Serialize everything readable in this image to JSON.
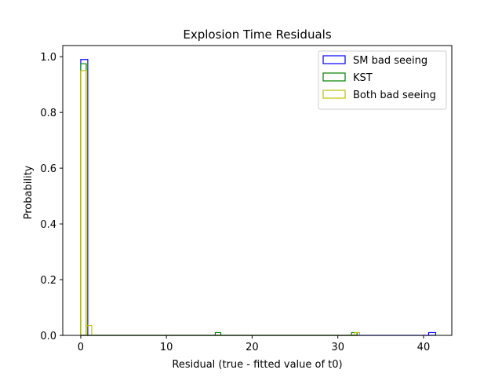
{
  "chart_data": {
    "type": "bar",
    "subtype": "step-histogram",
    "title": "Explosion Time Residuals",
    "xlabel": "Residual (true - fitted value of t0)",
    "ylabel": "Probability",
    "xlim": [
      -2.1,
      43.3
    ],
    "ylim": [
      0,
      1.04
    ],
    "xticks": [
      0,
      10,
      20,
      30,
      40
    ],
    "yticks": [
      0.0,
      0.2,
      0.4,
      0.6,
      0.8,
      1.0
    ],
    "grid": false,
    "legend_position": "top-right",
    "series": [
      {
        "name": "SM bad seeing",
        "color": "#0000ff",
        "bins": [
          {
            "x0": 0.0,
            "x1": 0.82,
            "value": 0.99
          },
          {
            "x0": 40.6,
            "x1": 41.42,
            "value": 0.01
          }
        ]
      },
      {
        "name": "KST",
        "color": "#008000",
        "bins": [
          {
            "x0": 0.0,
            "x1": 0.64,
            "value": 0.975
          },
          {
            "x0": 15.7,
            "x1": 16.34,
            "value": 0.01
          },
          {
            "x0": 31.6,
            "x1": 32.24,
            "value": 0.01
          }
        ]
      },
      {
        "name": "Both bad seeing",
        "color": "#bfbf00",
        "bins": [
          {
            "x0": 0.0,
            "x1": 0.64,
            "value": 0.95
          },
          {
            "x0": 0.64,
            "x1": 1.28,
            "value": 0.035
          },
          {
            "x0": 31.9,
            "x1": 32.54,
            "value": 0.01
          }
        ]
      }
    ]
  }
}
